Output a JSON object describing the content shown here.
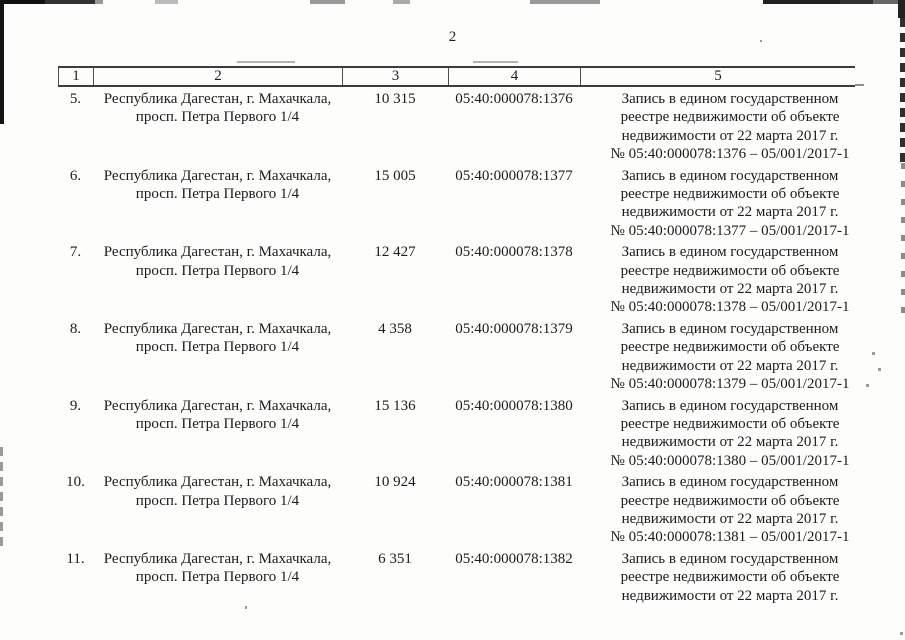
{
  "page_number": "2",
  "table": {
    "header": [
      "1",
      "2",
      "3",
      "4",
      "5"
    ],
    "rows": [
      {
        "num": "5.",
        "address": [
          "Республика Дагестан, г. Махачкала,",
          "просп. Петра Первого 1/4"
        ],
        "area": "10 315",
        "cadastral": "05:40:000078:1376",
        "record": [
          "Запись в едином государственном",
          "реестре недвижимости об объекте",
          "недвижимости от 22 марта 2017 г.",
          "№ 05:40:000078:1376 – 05/001/2017-1"
        ]
      },
      {
        "num": "6.",
        "address": [
          "Республика Дагестан, г. Махачкала,",
          "просп. Петра Первого 1/4"
        ],
        "area": "15 005",
        "cadastral": "05:40:000078:1377",
        "record": [
          "Запись в едином государственном",
          "реестре недвижимости об объекте",
          "недвижимости от 22 марта 2017 г.",
          "№ 05:40:000078:1377 – 05/001/2017-1"
        ]
      },
      {
        "num": "7.",
        "address": [
          "Республика Дагестан, г. Махачкала,",
          "просп. Петра Первого 1/4"
        ],
        "area": "12 427",
        "cadastral": "05:40:000078:1378",
        "record": [
          "Запись в едином государственном",
          "реестре недвижимости об объекте",
          "недвижимости от 22 марта 2017 г.",
          "№ 05:40:000078:1378 – 05/001/2017-1"
        ]
      },
      {
        "num": "8.",
        "address": [
          "Республика Дагестан, г. Махачкала,",
          "просп. Петра Первого 1/4"
        ],
        "area": "4 358",
        "cadastral": "05:40:000078:1379",
        "record": [
          "Запись в едином государственном",
          "реестре недвижимости об объекте",
          "недвижимости от 22 марта 2017 г.",
          "№ 05:40:000078:1379 – 05/001/2017-1"
        ]
      },
      {
        "num": "9.",
        "address": [
          "Республика Дагестан, г. Махачкала,",
          "просп. Петра Первого 1/4"
        ],
        "area": "15 136",
        "cadastral": "05:40:000078:1380",
        "record": [
          "Запись в едином государственном",
          "реестре недвижимости об объекте",
          "недвижимости от 22 марта 2017 г.",
          "№ 05:40:000078:1380 – 05/001/2017-1"
        ]
      },
      {
        "num": "10.",
        "address": [
          "Республика Дагестан, г. Махачкала,",
          "просп. Петра Первого 1/4"
        ],
        "area": "10 924",
        "cadastral": "05:40:000078:1381",
        "record": [
          "Запись в едином государственном",
          "реестре недвижимости об объекте",
          "недвижимости от 22 марта 2017 г.",
          "№ 05:40:000078:1381 – 05/001/2017-1"
        ]
      },
      {
        "num": "11.",
        "address": [
          "Республика Дагестан, г. Махачкала,",
          "просп. Петра Первого 1/4"
        ],
        "area": "6 351",
        "cadastral": "05:40:000078:1382",
        "record": [
          "Запись в едином государственном",
          "реестре недвижимости об объекте",
          "недвижимости от 22 марта 2017 г."
        ]
      }
    ]
  }
}
